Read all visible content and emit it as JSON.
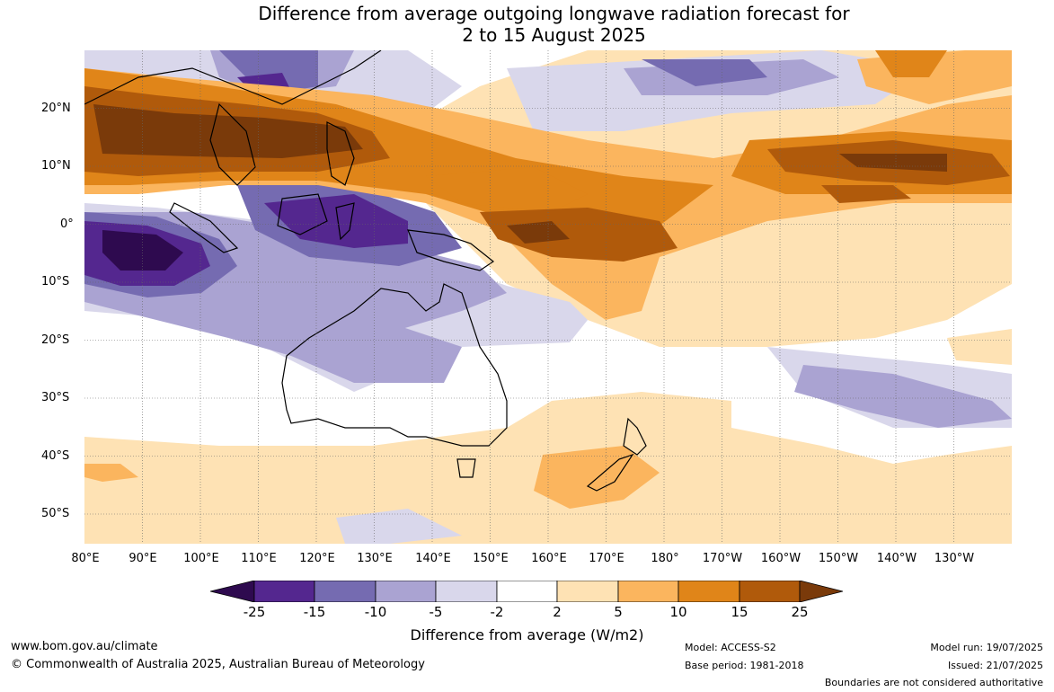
{
  "title": {
    "line1": "Difference from average outgoing longwave radiation forecast for",
    "line2": "2 to 15 August 2025"
  },
  "map": {
    "lat_labels": [
      "20°N",
      "10°N",
      "0°",
      "10°S",
      "20°S",
      "30°S",
      "40°S",
      "50°S"
    ],
    "lon_labels": [
      "80°E",
      "90°E",
      "100°E",
      "110°E",
      "120°E",
      "130°E",
      "140°E",
      "150°E",
      "160°E",
      "170°E",
      "180°",
      "170°W",
      "160°W",
      "150°W",
      "140°W",
      "130°W"
    ],
    "extent": {
      "lon_min": 80,
      "lon_max": 240,
      "lat_min": -55,
      "lat_max": 30
    }
  },
  "colorbar": {
    "ticks": [
      "-25",
      "-15",
      "-10",
      "-5",
      "-2",
      "2",
      "5",
      "10",
      "15",
      "25"
    ],
    "colors": [
      "#2e0a4f",
      "#54278f",
      "#756bb1",
      "#aaa3d2",
      "#d9d7eb",
      "#ffffff",
      "#fee2b4",
      "#fbb55e",
      "#e08519",
      "#b05a0b",
      "#7a3a0a"
    ],
    "label": "Difference from average (W/m2)"
  },
  "footer": {
    "website": "www.bom.gov.au/climate",
    "copyright": "© Commonwealth of Australia 2025, Australian Bureau of Meteorology",
    "model": "Model: ACCESS-S2",
    "base_period": "Base period: 1981-2018",
    "model_run": "Model run: 19/07/2025",
    "issued": "Issued: 21/07/2025",
    "boundaries": "Boundaries are not considered authoritative"
  }
}
